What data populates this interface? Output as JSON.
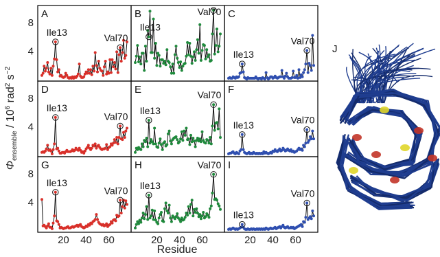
{
  "chart_data": {
    "type": "line",
    "xlabel": "Residue",
    "ylabel_parts": {
      "symbol": "Φ",
      "sub": "ensemble",
      "mid": " / 10",
      "sup1": "6",
      "unit": " rad",
      "sup2": "2",
      "tail": " s",
      "sup3": "−2"
    },
    "xlim": [
      1,
      76
    ],
    "ylim": [
      0,
      10
    ],
    "xticks": [
      {
        "v": 20,
        "label": "20"
      },
      {
        "v": 40,
        "label": "40"
      },
      {
        "v": 60,
        "label": "60"
      }
    ],
    "yticks": [
      {
        "v": 4,
        "label": "4"
      },
      {
        "v": 8,
        "label": "8"
      }
    ],
    "colors": {
      "red": "#d9302a",
      "green": "#1f8a3c",
      "blue": "#2f4fb0"
    },
    "panels": [
      {
        "letter": "A",
        "row": 0,
        "col": 0,
        "color": "red",
        "label_ile": "Ile13",
        "label_val": "Val70",
        "ile": [
          13,
          5.3
        ],
        "val": [
          70,
          4.5
        ],
        "y": [
          0.6,
          0.9,
          1.9,
          1.2,
          1.6,
          2.4,
          1.1,
          0.8,
          1.6,
          0.6,
          1.9,
          2.9,
          5.3,
          2.8,
          1.1,
          1.4,
          0.5,
          0.6,
          0.4,
          0.3,
          0.4,
          0.9,
          0.6,
          0.3,
          0.2,
          0.3,
          0.2,
          0.4,
          0.2,
          0.4,
          0.3,
          0.5,
          0.8,
          2.2,
          0.5,
          0.3,
          0.3,
          0.4,
          0.8,
          1.1,
          0.9,
          1.4,
          0.9,
          1.4,
          0.7,
          1.9,
          1.2,
          3.8,
          2.0,
          1.1,
          2.6,
          1.6,
          1.3,
          1.2,
          0.6,
          1.8,
          2.6,
          0.8,
          1.1,
          0.9,
          2.8,
          1.0,
          2.8,
          1.8,
          2.4,
          1.5,
          3.9,
          1.0,
          3.5,
          4.5,
          2.6,
          3.8,
          5.5,
          3.0,
          3.4,
          5.3
        ]
      },
      {
        "letter": "B",
        "row": 0,
        "col": 1,
        "color": "green",
        "label_ile": "Ile13",
        "label_val": "Val70",
        "ile": [
          13,
          6.0
        ],
        "val": [
          70,
          9.7
        ],
        "y": [
          2.4,
          3.3,
          4.8,
          2.5,
          3.2,
          2.2,
          3.7,
          3.7,
          1.3,
          4.7,
          2.6,
          6.9,
          6.0,
          9.6,
          3.8,
          3.8,
          8.5,
          3.0,
          5.1,
          2.0,
          3.7,
          3.4,
          1.9,
          2.8,
          2.8,
          2.3,
          2.6,
          2.1,
          4.2,
          2.6,
          2.4,
          1.8,
          0.9,
          2.2,
          0.9,
          3.5,
          4.7,
          3.0,
          2.4,
          1.7,
          2.5,
          1.3,
          1.9,
          2.2,
          2.3,
          3.3,
          5.2,
          3.5,
          5.1,
          3.3,
          2.3,
          3.2,
          3.9,
          2.7,
          4.2,
          5.6,
          3.7,
          7.7,
          2.7,
          4.1,
          4.9,
          4.8,
          2.9,
          4.2,
          3.2,
          3.5,
          2.6,
          2.7,
          6.4,
          9.7,
          3.6,
          4.8,
          7.1,
          3.9,
          4.7,
          6.4
        ]
      },
      {
        "letter": "C",
        "row": 0,
        "col": 2,
        "color": "blue",
        "label_ile": "Ile13",
        "label_val": "Val70",
        "ile": [
          13,
          2.2
        ],
        "val": [
          70,
          4.1
        ],
        "y": [
          0.2,
          0.3,
          0.2,
          0.2,
          0.4,
          0.3,
          0.2,
          0.4,
          0.3,
          0.4,
          0.9,
          1.0,
          2.2,
          1.1,
          0.3,
          0.2,
          0.1,
          0.3,
          0.2,
          0.2,
          0.2,
          0.2,
          0.2,
          0.2,
          0.4,
          0.2,
          0.1,
          0.2,
          0.2,
          0.1,
          0.3,
          0.2,
          0.1,
          1.0,
          0.3,
          0.1,
          0.2,
          0.4,
          0.4,
          0.2,
          0.3,
          0.5,
          0.3,
          0.2,
          0.3,
          0.4,
          0.4,
          1.3,
          0.4,
          0.2,
          0.5,
          0.9,
          0.4,
          0.2,
          0.2,
          0.2,
          0.3,
          1.2,
          0.3,
          0.3,
          0.6,
          0.2,
          1.4,
          0.3,
          0.7,
          0.4,
          1.0,
          1.4,
          2.2,
          4.1,
          1.0,
          2.3,
          2.0,
          1.3,
          6.2,
          2.0
        ]
      },
      {
        "letter": "D",
        "row": 1,
        "col": 0,
        "color": "red",
        "label_ile": "Ile13",
        "label_val": "Val70",
        "ile": [
          13,
          5.3
        ],
        "val": [
          70,
          4.1
        ],
        "y": [
          0.4,
          0.5,
          0.4,
          0.6,
          0.9,
          1.4,
          0.7,
          0.8,
          0.6,
          0.2,
          0.8,
          1.6,
          5.3,
          0.9,
          1.0,
          0.6,
          0.3,
          0.3,
          0.4,
          0.4,
          0.3,
          0.5,
          0.7,
          0.5,
          0.5,
          0.5,
          0.6,
          0.8,
          0.6,
          0.7,
          1.0,
          0.8,
          0.7,
          1.0,
          0.7,
          0.4,
          0.5,
          0.3,
          0.6,
          0.9,
          1.1,
          1.4,
          1.0,
          0.8,
          1.0,
          1.4,
          1.3,
          1.6,
          1.0,
          1.3,
          1.4,
          1.1,
          0.9,
          0.8,
          0.9,
          0.9,
          1.0,
          1.5,
          0.8,
          1.1,
          1.2,
          1.6,
          1.4,
          1.7,
          2.2,
          1.8,
          2.5,
          1.6,
          2.5,
          4.1,
          2.3,
          2.2,
          3.2,
          2.5,
          3.4,
          3.8
        ]
      },
      {
        "letter": "E",
        "row": 1,
        "col": 1,
        "color": "green",
        "label_ile": "Ile13",
        "label_val": "Val70",
        "ile": [
          13,
          4.9
        ],
        "val": [
          70,
          7.1
        ],
        "y": [
          0.4,
          1.0,
          0.8,
          1.1,
          0.9,
          0.8,
          1.6,
          1.2,
          2.1,
          1.9,
          2.4,
          1.2,
          4.9,
          1.7,
          2.2,
          1.9,
          1.6,
          3.8,
          1.6,
          1.2,
          1.1,
          1.7,
          2.3,
          1.5,
          0.8,
          1.7,
          1.9,
          1.3,
          1.5,
          3.0,
          3.4,
          2.0,
          1.6,
          2.2,
          2.4,
          2.5,
          2.6,
          2.2,
          1.7,
          1.9,
          2.3,
          3.3,
          2.1,
          3.4,
          2.8,
          3.8,
          2.2,
          2.3,
          1.5,
          2.8,
          1.9,
          2.4,
          2.0,
          1.2,
          2.1,
          2.4,
          2.0,
          2.3,
          1.9,
          3.3,
          2.1,
          1.8,
          1.7,
          2.2,
          2.1,
          1.7,
          2.5,
          1.6,
          4.1,
          7.1,
          3.5,
          4.5,
          4.6,
          3.7,
          6.5,
          2.5
        ]
      },
      {
        "letter": "F",
        "row": 1,
        "col": 2,
        "color": "blue",
        "label_ile": "Ile13",
        "label_val": "Val70",
        "ile": [
          13,
          2.9
        ],
        "val": [
          70,
          3.6
        ],
        "y": [
          0.2,
          0.3,
          0.3,
          0.4,
          0.5,
          0.3,
          0.2,
          0.4,
          0.3,
          0.2,
          0.6,
          0.8,
          2.9,
          0.8,
          0.4,
          0.3,
          0.2,
          0.3,
          0.4,
          0.2,
          0.3,
          0.2,
          0.4,
          0.3,
          0.2,
          0.3,
          0.2,
          0.3,
          0.2,
          0.3,
          0.2,
          0.5,
          0.3,
          0.4,
          0.3,
          0.2,
          0.3,
          0.4,
          0.3,
          0.6,
          0.5,
          0.8,
          0.6,
          0.5,
          0.7,
          0.9,
          0.6,
          0.7,
          1.0,
          0.8,
          0.6,
          0.7,
          0.9,
          0.7,
          0.6,
          0.8,
          0.5,
          0.6,
          0.4,
          0.5,
          0.6,
          0.8,
          1.0,
          0.8,
          0.9,
          0.7,
          1.4,
          1.2,
          1.7,
          3.6,
          1.8,
          2.1,
          2.6,
          2.3,
          3.4,
          2.3
        ]
      },
      {
        "letter": "G",
        "row": 2,
        "col": 0,
        "color": "red",
        "label_ile": "Ile13",
        "label_val": "Val70",
        "ile": [
          13,
          5.4
        ],
        "val": [
          70,
          4.3
        ],
        "y": [
          4.4,
          0.7,
          0.8,
          0.6,
          0.4,
          0.7,
          1.0,
          0.5,
          0.5,
          0.3,
          1.1,
          2.1,
          5.4,
          1.4,
          1.3,
          0.9,
          0.4,
          0.5,
          0.4,
          0.3,
          0.4,
          0.4,
          0.5,
          0.6,
          0.4,
          0.4,
          0.5,
          0.6,
          0.5,
          0.6,
          0.7,
          0.8,
          0.6,
          0.8,
          0.9,
          0.6,
          0.5,
          0.4,
          0.5,
          0.7,
          0.6,
          0.9,
          0.8,
          1.1,
          1.0,
          1.3,
          1.4,
          1.6,
          2.3,
          1.6,
          1.2,
          1.0,
          0.9,
          0.8,
          0.9,
          0.7,
          0.8,
          1.0,
          0.6,
          0.8,
          0.9,
          1.3,
          1.1,
          1.5,
          1.6,
          1.4,
          2.2,
          2.0,
          2.1,
          4.3,
          2.5,
          3.4,
          4.3,
          3.2,
          4.2,
          3.7
        ]
      },
      {
        "letter": "H",
        "row": 2,
        "col": 1,
        "color": "green",
        "label_ile": "Ile13",
        "label_val": "Val70",
        "ile": [
          13,
          5.0
        ],
        "val": [
          70,
          7.9
        ],
        "y": [
          0.4,
          0.9,
          1.3,
          1.0,
          1.5,
          1.2,
          1.8,
          2.5,
          1.7,
          2.3,
          3.4,
          1.6,
          5.0,
          1.8,
          2.1,
          2.9,
          1.6,
          2.8,
          1.5,
          1.2,
          1.0,
          1.8,
          2.3,
          2.6,
          1.4,
          1.3,
          3.1,
          3.9,
          2.8,
          2.5,
          3.6,
          1.8,
          1.3,
          2.1,
          1.9,
          1.7,
          2.0,
          2.4,
          1.8,
          1.6,
          1.3,
          1.8,
          1.5,
          1.6,
          1.9,
          2.5,
          2.2,
          3.4,
          2.5,
          3.7,
          4.3,
          2.1,
          3.0,
          2.6,
          3.1,
          2.5,
          2.0,
          2.3,
          1.7,
          2.1,
          2.6,
          1.8,
          2.0,
          2.4,
          2.2,
          1.9,
          3.1,
          3.5,
          5.3,
          7.9,
          4.4,
          4.5,
          4.3,
          3.8,
          3.5,
          3.0
        ]
      },
      {
        "letter": "I",
        "row": 2,
        "col": 2,
        "color": "blue",
        "label_ile": "Ile13",
        "label_val": "Val70",
        "ile": [
          13,
          0.9
        ],
        "val": [
          70,
          3.9
        ],
        "y": [
          0.2,
          0.3,
          0.2,
          0.3,
          0.4,
          0.3,
          0.2,
          0.3,
          0.2,
          0.3,
          0.4,
          0.5,
          0.9,
          0.5,
          0.3,
          0.2,
          0.2,
          0.3,
          0.2,
          0.2,
          0.3,
          0.2,
          0.3,
          0.2,
          0.2,
          0.3,
          0.2,
          0.3,
          0.2,
          0.3,
          0.2,
          0.3,
          0.2,
          0.4,
          0.3,
          0.2,
          0.3,
          0.4,
          0.3,
          0.3,
          0.4,
          0.5,
          0.3,
          0.4,
          0.5,
          0.6,
          0.4,
          0.6,
          0.8,
          0.5,
          0.4,
          0.5,
          0.6,
          0.4,
          0.4,
          0.5,
          0.4,
          0.5,
          0.3,
          0.4,
          0.5,
          0.6,
          0.7,
          0.8,
          0.9,
          0.6,
          1.3,
          1.2,
          1.9,
          3.9,
          1.6,
          1.8,
          2.0,
          1.7,
          2.8,
          2.1
        ]
      }
    ]
  },
  "structure_panel": {
    "letter": "J",
    "colors": {
      "body": "#1f3d8f",
      "dark": "#142b6b",
      "highlight_red": "#c23428",
      "highlight_yellow": "#e0d62a"
    }
  }
}
